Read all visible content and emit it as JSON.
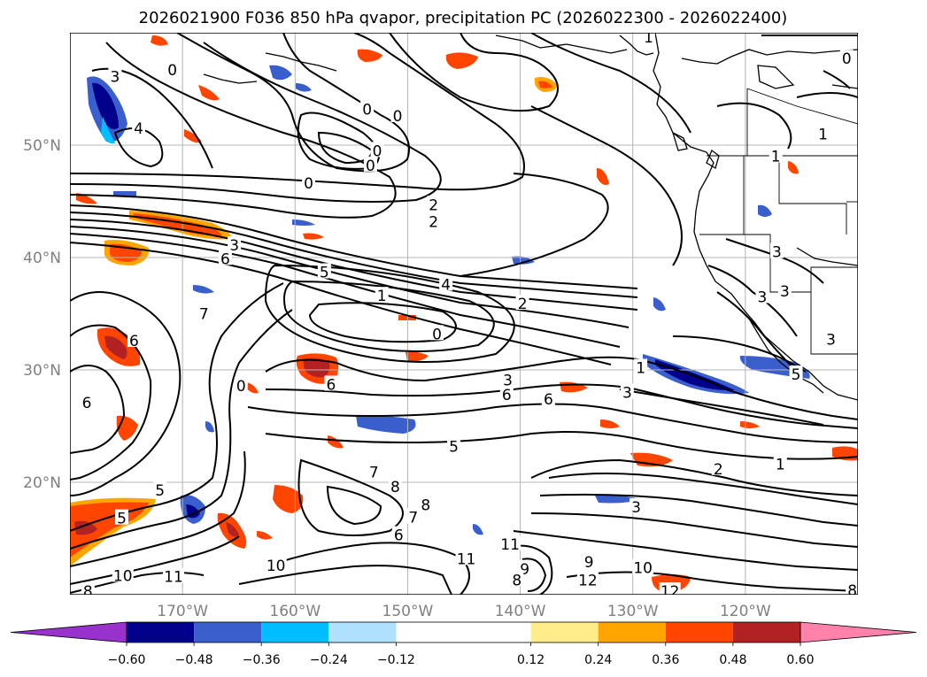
{
  "chart_data": {
    "type": "contour-map",
    "title": "2026021900 F036 850 hPa qvapor, precipitation PC (2026022300 - 2026022400)",
    "lat_range": [
      10,
      60
    ],
    "lon_range": [
      -180,
      -110
    ],
    "lat_ticks": [
      {
        "value": 50,
        "label": "50°N"
      },
      {
        "value": 40,
        "label": "40°N"
      },
      {
        "value": 30,
        "label": "30°N"
      },
      {
        "value": 20,
        "label": "20°N"
      }
    ],
    "lon_ticks": [
      {
        "value": -170,
        "label": "170°W"
      },
      {
        "value": -160,
        "label": "160°W"
      },
      {
        "value": -150,
        "label": "150°W"
      },
      {
        "value": -140,
        "label": "140°W"
      },
      {
        "value": -130,
        "label": "130°W"
      },
      {
        "value": -120,
        "label": "120°W"
      }
    ],
    "grid": true,
    "colorbar": {
      "orientation": "horizontal",
      "extend": "both",
      "levels": [
        -0.6,
        -0.48,
        -0.36,
        -0.24,
        -0.12,
        0.12,
        0.24,
        0.36,
        0.48,
        0.6
      ],
      "tick_labels": [
        "−0.60",
        "−0.48",
        "−0.36",
        "−0.24",
        "−0.12",
        "0.12",
        "0.24",
        "0.36",
        "0.48",
        "0.60"
      ],
      "colors": [
        "#9932cc",
        "#00008b",
        "#3a5fcd",
        "#00bfff",
        "#b0e2ff",
        "#ffffff",
        "#ffec8b",
        "#ffa500",
        "#ff4500",
        "#b22222",
        "#ff82ab"
      ]
    },
    "contour_labels": [
      {
        "lon": -176.0,
        "lat": 56.1,
        "text": "3"
      },
      {
        "lon": -170.9,
        "lat": 56.7,
        "text": "0"
      },
      {
        "lon": -173.9,
        "lat": 51.5,
        "text": "4"
      },
      {
        "lon": -153.6,
        "lat": 53.2,
        "text": "0"
      },
      {
        "lon": -150.9,
        "lat": 52.6,
        "text": "0"
      },
      {
        "lon": -152.7,
        "lat": 49.5,
        "text": "0"
      },
      {
        "lon": -153.3,
        "lat": 48.2,
        "text": "0"
      },
      {
        "lon": -158.8,
        "lat": 46.6,
        "text": "0"
      },
      {
        "lon": -147.7,
        "lat": 44.7,
        "text": "2"
      },
      {
        "lon": -147.7,
        "lat": 43.2,
        "text": "2"
      },
      {
        "lon": -165.4,
        "lat": 41.1,
        "text": "3"
      },
      {
        "lon": -166.2,
        "lat": 39.9,
        "text": "6"
      },
      {
        "lon": -157.4,
        "lat": 38.7,
        "text": "5"
      },
      {
        "lon": -146.6,
        "lat": 37.6,
        "text": "4"
      },
      {
        "lon": -152.3,
        "lat": 36.6,
        "text": "1"
      },
      {
        "lon": -139.8,
        "lat": 35.9,
        "text": "2"
      },
      {
        "lon": -147.4,
        "lat": 33.2,
        "text": "0"
      },
      {
        "lon": -174.3,
        "lat": 32.6,
        "text": "6"
      },
      {
        "lon": -168.1,
        "lat": 35.0,
        "text": "7"
      },
      {
        "lon": -129.3,
        "lat": 30.2,
        "text": "1"
      },
      {
        "lon": -130.5,
        "lat": 28.0,
        "text": "3"
      },
      {
        "lon": -141.1,
        "lat": 29.1,
        "text": "3"
      },
      {
        "lon": -141.2,
        "lat": 27.8,
        "text": "6"
      },
      {
        "lon": -137.5,
        "lat": 27.4,
        "text": "6"
      },
      {
        "lon": -164.8,
        "lat": 28.6,
        "text": "0"
      },
      {
        "lon": -156.8,
        "lat": 28.7,
        "text": "6"
      },
      {
        "lon": -178.5,
        "lat": 27.1,
        "text": "6"
      },
      {
        "lon": -145.9,
        "lat": 23.2,
        "text": "5"
      },
      {
        "lon": -172.0,
        "lat": 19.3,
        "text": "5"
      },
      {
        "lon": -175.4,
        "lat": 16.8,
        "text": "5"
      },
      {
        "lon": -153.0,
        "lat": 20.9,
        "text": "7"
      },
      {
        "lon": -151.1,
        "lat": 19.6,
        "text": "8"
      },
      {
        "lon": -148.4,
        "lat": 18.0,
        "text": "8"
      },
      {
        "lon": -149.5,
        "lat": 16.9,
        "text": "7"
      },
      {
        "lon": -150.8,
        "lat": 15.3,
        "text": "6"
      },
      {
        "lon": -161.7,
        "lat": 12.6,
        "text": "10"
      },
      {
        "lon": -140.9,
        "lat": 14.5,
        "text": "11"
      },
      {
        "lon": -144.8,
        "lat": 13.2,
        "text": "11"
      },
      {
        "lon": -139.6,
        "lat": 12.3,
        "text": "9"
      },
      {
        "lon": -140.3,
        "lat": 11.3,
        "text": "8"
      },
      {
        "lon": -133.9,
        "lat": 12.9,
        "text": "9"
      },
      {
        "lon": -129.1,
        "lat": 12.4,
        "text": "10"
      },
      {
        "lon": -134.0,
        "lat": 11.3,
        "text": "12"
      },
      {
        "lon": -126.7,
        "lat": 10.3,
        "text": "12"
      },
      {
        "lon": -175.3,
        "lat": 11.7,
        "text": "10"
      },
      {
        "lon": -178.4,
        "lat": 10.3,
        "text": "8"
      },
      {
        "lon": -170.8,
        "lat": 11.6,
        "text": "11"
      },
      {
        "lon": -129.7,
        "lat": 17.8,
        "text": "3"
      },
      {
        "lon": -122.4,
        "lat": 21.2,
        "text": "2"
      },
      {
        "lon": -116.9,
        "lat": 21.6,
        "text": "1"
      },
      {
        "lon": -128.6,
        "lat": 59.6,
        "text": "1"
      },
      {
        "lon": -117.3,
        "lat": 49.0,
        "text": "1"
      },
      {
        "lon": -113.1,
        "lat": 51.0,
        "text": "1"
      },
      {
        "lon": -111.0,
        "lat": 57.7,
        "text": "0"
      },
      {
        "lon": -117.2,
        "lat": 40.5,
        "text": "3"
      },
      {
        "lon": -118.5,
        "lat": 36.5,
        "text": "3"
      },
      {
        "lon": -116.5,
        "lat": 37.0,
        "text": "3"
      },
      {
        "lon": -112.4,
        "lat": 32.7,
        "text": "3"
      },
      {
        "lon": -115.5,
        "lat": 29.6,
        "text": "5"
      },
      {
        "lon": -110.5,
        "lat": 10.4,
        "text": "8"
      }
    ]
  }
}
